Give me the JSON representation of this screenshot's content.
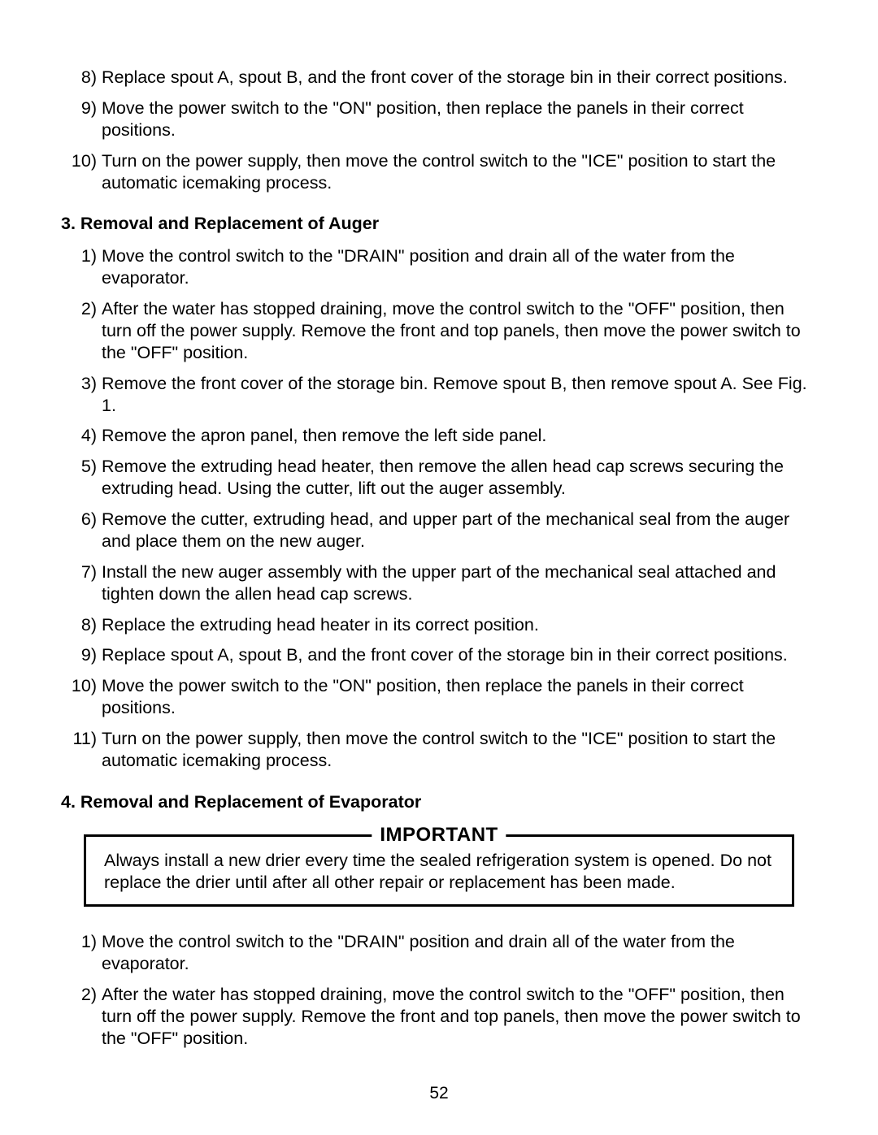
{
  "list_a": [
    {
      "n": "8)",
      "t": "Replace spout A, spout B, and the front cover of the storage bin in their correct positions."
    },
    {
      "n": "9)",
      "t": "Move the power switch to the \"ON\" position, then replace the panels in their correct positions."
    },
    {
      "n": "10)",
      "t": "Turn on the power supply, then move the control switch to the \"ICE\" position to start the automatic icemaking process."
    }
  ],
  "section3": {
    "heading": "3. Removal and Replacement of Auger",
    "items": [
      {
        "n": "1)",
        "t": "Move the control switch to the \"DRAIN\" position and drain all of the water from the evaporator."
      },
      {
        "n": "2)",
        "t": "After the water has stopped draining, move the control switch to the \"OFF\" position, then turn off the power supply. Remove the front and top panels, then move the power switch to the \"OFF\" position."
      },
      {
        "n": "3)",
        "t": "Remove the front cover of the storage bin. Remove spout B, then remove spout A. See Fig. 1."
      },
      {
        "n": "4)",
        "t": "Remove the apron panel, then remove the left side panel."
      },
      {
        "n": "5)",
        "t": "Remove the extruding head heater, then remove the allen head cap screws securing the extruding head. Using the cutter, lift out the auger assembly."
      },
      {
        "n": "6)",
        "t": "Remove the cutter, extruding head, and upper part of the mechanical seal from the auger and place them on the new auger."
      },
      {
        "n": "7)",
        "t": "Install the new auger assembly with the upper part of the mechanical seal attached and tighten down the allen head cap screws."
      },
      {
        "n": "8)",
        "t": "Replace the extruding head heater in its correct position."
      },
      {
        "n": "9)",
        "t": "Replace spout A, spout B, and the front cover of the storage bin in their correct positions."
      },
      {
        "n": "10)",
        "t": "Move the power switch to the \"ON\" position, then replace the panels in their correct positions."
      },
      {
        "n": "11)",
        "t": "Turn on the power supply, then move the control switch to the \"ICE\" position to start the automatic icemaking process."
      }
    ]
  },
  "section4": {
    "heading": "4. Removal and Replacement of Evaporator",
    "important": {
      "title": "IMPORTANT",
      "body": "Always install a new drier every time the sealed refrigeration system is opened. Do not replace the drier until after all other repair or replacement has been made."
    },
    "items": [
      {
        "n": "1)",
        "t": "Move the control switch to the \"DRAIN\" position and drain all of the water from the evaporator."
      },
      {
        "n": "2)",
        "t": "After the water has stopped draining, move the control switch to the \"OFF\" position, then turn off the power supply. Remove the front and top panels, then move the power switch to the \"OFF\" position."
      }
    ]
  },
  "page_number": "52"
}
